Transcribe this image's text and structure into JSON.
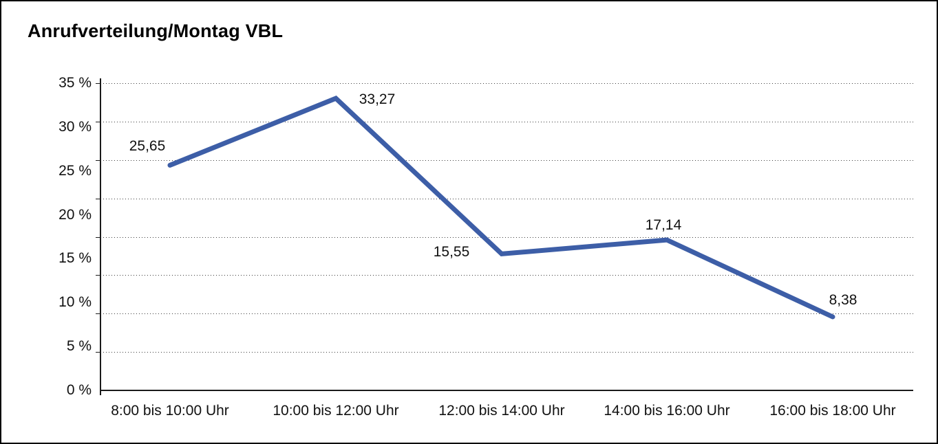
{
  "chart_data": {
    "type": "line",
    "title": "Anrufverteilung/Montag VBL",
    "categories": [
      "8:00 bis 10:00 Uhr",
      "10:00 bis 12:00 Uhr",
      "12:00 bis 14:00 Uhr",
      "14:00 bis 16:00 Uhr",
      "16:00 bis 18:00 Uhr"
    ],
    "values": [
      25.65,
      33.27,
      15.55,
      17.14,
      8.38
    ],
    "value_labels": [
      "25,65",
      "33,27",
      "15,55",
      "17,14",
      "8,38"
    ],
    "y_ticks": [
      "35 %",
      "30 %",
      "25 %",
      "20 %",
      "15 %",
      "10 %",
      "5 %",
      "0 %"
    ],
    "y_tick_values": [
      35,
      30,
      25,
      20,
      15,
      10,
      5,
      0
    ],
    "ylim": [
      0,
      35
    ],
    "xlabel": "",
    "ylabel": "",
    "legend": "none",
    "grid": "horizontal dotted, 9 evenly spaced lines (8 intervals)",
    "line_color": "#3d5ea7",
    "axis_color": "#1a1a1a",
    "text_color": "#111111"
  }
}
